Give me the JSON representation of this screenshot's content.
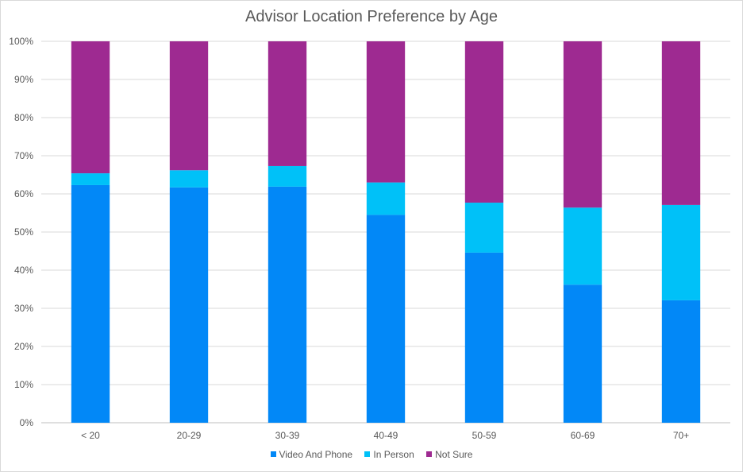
{
  "chart_data": {
    "type": "bar",
    "stacked": true,
    "title": "Advisor Location Preference by Age",
    "xlabel": "",
    "ylabel": "",
    "ylim": [
      0,
      100
    ],
    "yticks": [
      "0%",
      "10%",
      "20%",
      "30%",
      "40%",
      "50%",
      "60%",
      "70%",
      "80%",
      "90%",
      "100%"
    ],
    "categories": [
      "< 20",
      "20-29",
      "30-39",
      "40-49",
      "50-59",
      "60-69",
      "70+"
    ],
    "series": [
      {
        "name": "Video And Phone",
        "color": "#0288f7",
        "values": [
          62.3,
          61.7,
          61.9,
          54.5,
          44.6,
          36.2,
          32.1
        ]
      },
      {
        "name": "In Person",
        "color": "#00c1f8",
        "values": [
          3.1,
          4.5,
          5.4,
          8.5,
          13.1,
          20.2,
          25.0
        ]
      },
      {
        "name": "Not Sure",
        "color": "#9e2a91",
        "values": [
          34.6,
          33.8,
          32.7,
          37.0,
          42.3,
          43.6,
          42.9
        ]
      }
    ],
    "legend_position": "bottom",
    "grid": true
  }
}
